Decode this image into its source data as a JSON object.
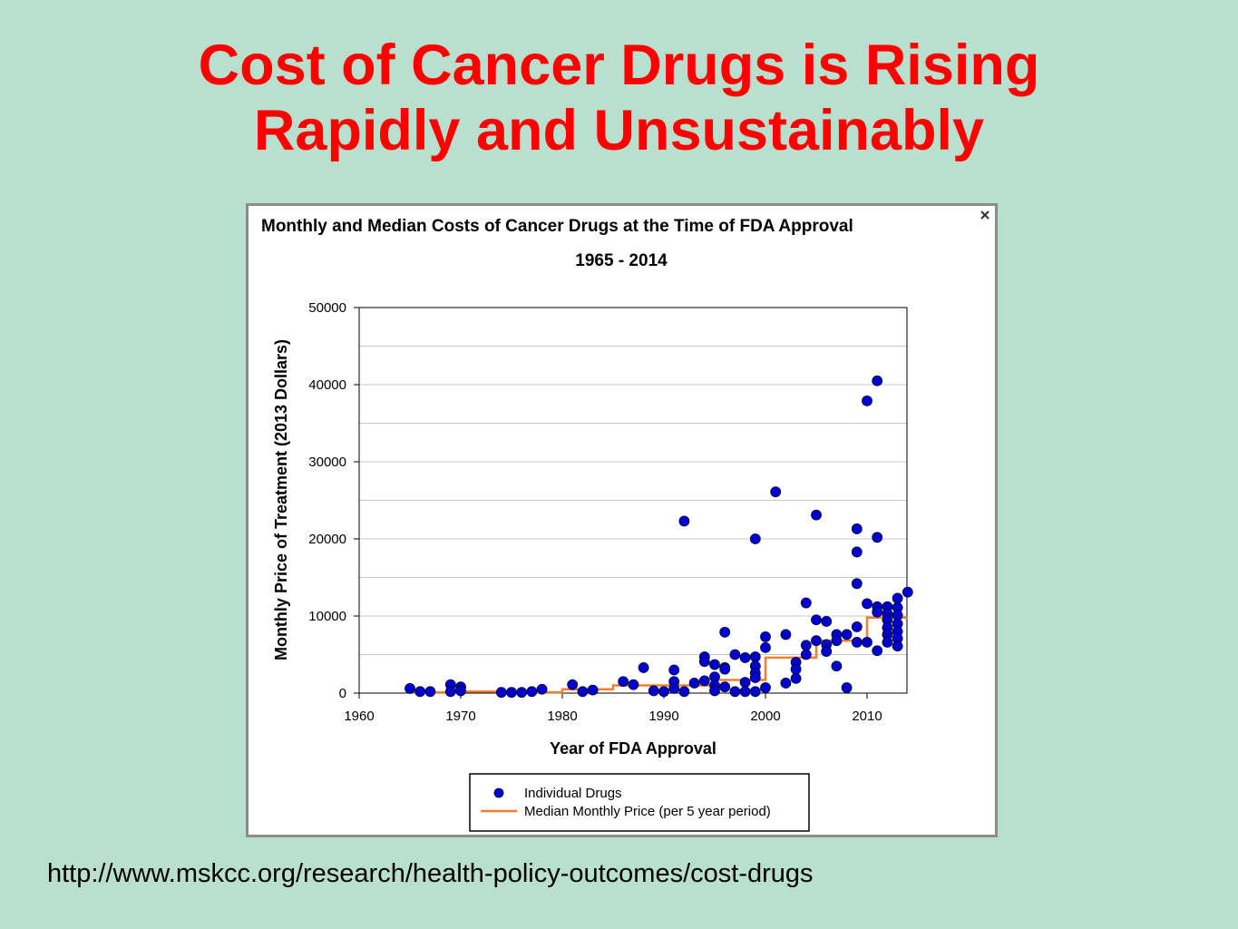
{
  "slide": {
    "title_line1": "Cost of Cancer Drugs is Rising",
    "title_line2": "Rapidly and Unsustainably",
    "source_url": "http://www.mskcc.org/research/health-policy-outcomes/cost-drugs"
  },
  "colors": {
    "background": "#b9dfce",
    "title": "#ff0000",
    "points": "#0000cc",
    "median_line": "#f08030"
  },
  "icons": {
    "close": "close-icon"
  },
  "chart_data": {
    "type": "scatter",
    "title": "Monthly and Median Costs of Cancer Drugs at the Time of FDA Approval",
    "subtitle": "1965 - 2014",
    "xlabel": "Year of FDA Approval",
    "ylabel": "Monthly Price of Treatment (2013 Dollars)",
    "xlim": [
      1960,
      2014
    ],
    "ylim": [
      0,
      50000
    ],
    "x_ticks": [
      1960,
      1970,
      1980,
      1990,
      2000,
      2010
    ],
    "y_ticks": [
      0,
      10000,
      20000,
      30000,
      40000,
      50000
    ],
    "grid": "horizontal",
    "legend_position": "bottom",
    "series": [
      {
        "name": "Individual Drugs",
        "type": "scatter",
        "points": [
          [
            1965,
            600
          ],
          [
            1966,
            200
          ],
          [
            1967,
            200
          ],
          [
            1969,
            1100
          ],
          [
            1969,
            200
          ],
          [
            1970,
            800
          ],
          [
            1970,
            300
          ],
          [
            1974,
            100
          ],
          [
            1975,
            100
          ],
          [
            1976,
            100
          ],
          [
            1977,
            200
          ],
          [
            1978,
            500
          ],
          [
            1981,
            1100
          ],
          [
            1982,
            200
          ],
          [
            1983,
            400
          ],
          [
            1986,
            1500
          ],
          [
            1987,
            1100
          ],
          [
            1988,
            3300
          ],
          [
            1989,
            300
          ],
          [
            1990,
            200
          ],
          [
            1991,
            3000
          ],
          [
            1991,
            1500
          ],
          [
            1991,
            600
          ],
          [
            1992,
            22300
          ],
          [
            1992,
            200
          ],
          [
            1993,
            1300
          ],
          [
            1994,
            4700
          ],
          [
            1994,
            4100
          ],
          [
            1994,
            1600
          ],
          [
            1995,
            3700
          ],
          [
            1995,
            2100
          ],
          [
            1995,
            1000
          ],
          [
            1995,
            300
          ],
          [
            1996,
            7900
          ],
          [
            1996,
            3300
          ],
          [
            1996,
            3100
          ],
          [
            1996,
            800
          ],
          [
            1997,
            5000
          ],
          [
            1997,
            200
          ],
          [
            1998,
            4600
          ],
          [
            1998,
            1400
          ],
          [
            1998,
            200
          ],
          [
            1999,
            20000
          ],
          [
            1999,
            4700
          ],
          [
            1999,
            3500
          ],
          [
            1999,
            2600
          ],
          [
            1999,
            2000
          ],
          [
            1999,
            200
          ],
          [
            2000,
            7300
          ],
          [
            2000,
            5900
          ],
          [
            2000,
            700
          ],
          [
            2001,
            26100
          ],
          [
            2002,
            7600
          ],
          [
            2002,
            1300
          ],
          [
            2003,
            4000
          ],
          [
            2003,
            3100
          ],
          [
            2003,
            1900
          ],
          [
            2004,
            11700
          ],
          [
            2004,
            6200
          ],
          [
            2004,
            5000
          ],
          [
            2005,
            23100
          ],
          [
            2005,
            9500
          ],
          [
            2005,
            6800
          ],
          [
            2006,
            9300
          ],
          [
            2006,
            6300
          ],
          [
            2006,
            5400
          ],
          [
            2007,
            7600
          ],
          [
            2007,
            6800
          ],
          [
            2007,
            3500
          ],
          [
            2008,
            7600
          ],
          [
            2008,
            700
          ],
          [
            2009,
            21300
          ],
          [
            2009,
            18300
          ],
          [
            2009,
            14200
          ],
          [
            2009,
            8600
          ],
          [
            2009,
            6600
          ],
          [
            2010,
            37900
          ],
          [
            2010,
            11600
          ],
          [
            2010,
            6600
          ],
          [
            2011,
            40500
          ],
          [
            2011,
            20200
          ],
          [
            2011,
            11200
          ],
          [
            2011,
            10500
          ],
          [
            2011,
            5500
          ],
          [
            2012,
            11200
          ],
          [
            2012,
            10300
          ],
          [
            2012,
            9500
          ],
          [
            2012,
            8500
          ],
          [
            2012,
            7600
          ],
          [
            2012,
            6600
          ],
          [
            2013,
            12300
          ],
          [
            2013,
            11100
          ],
          [
            2013,
            10100
          ],
          [
            2013,
            9000
          ],
          [
            2013,
            8000
          ],
          [
            2013,
            7100
          ],
          [
            2013,
            6100
          ],
          [
            2014,
            13100
          ]
        ]
      },
      {
        "name": "Median Monthly Price (per 5 year period)",
        "type": "step",
        "steps": [
          {
            "x_start": 1965,
            "x_end": 1970,
            "y": 100
          },
          {
            "x_start": 1970,
            "x_end": 1975,
            "y": 200
          },
          {
            "x_start": 1975,
            "x_end": 1980,
            "y": 100
          },
          {
            "x_start": 1980,
            "x_end": 1985,
            "y": 500
          },
          {
            "x_start": 1985,
            "x_end": 1990,
            "y": 1000
          },
          {
            "x_start": 1990,
            "x_end": 1995,
            "y": 1000
          },
          {
            "x_start": 1995,
            "x_end": 2000,
            "y": 1700
          },
          {
            "x_start": 2000,
            "x_end": 2005,
            "y": 4600
          },
          {
            "x_start": 2005,
            "x_end": 2010,
            "y": 6800
          },
          {
            "x_start": 2010,
            "x_end": 2014,
            "y": 9800
          }
        ]
      }
    ]
  }
}
